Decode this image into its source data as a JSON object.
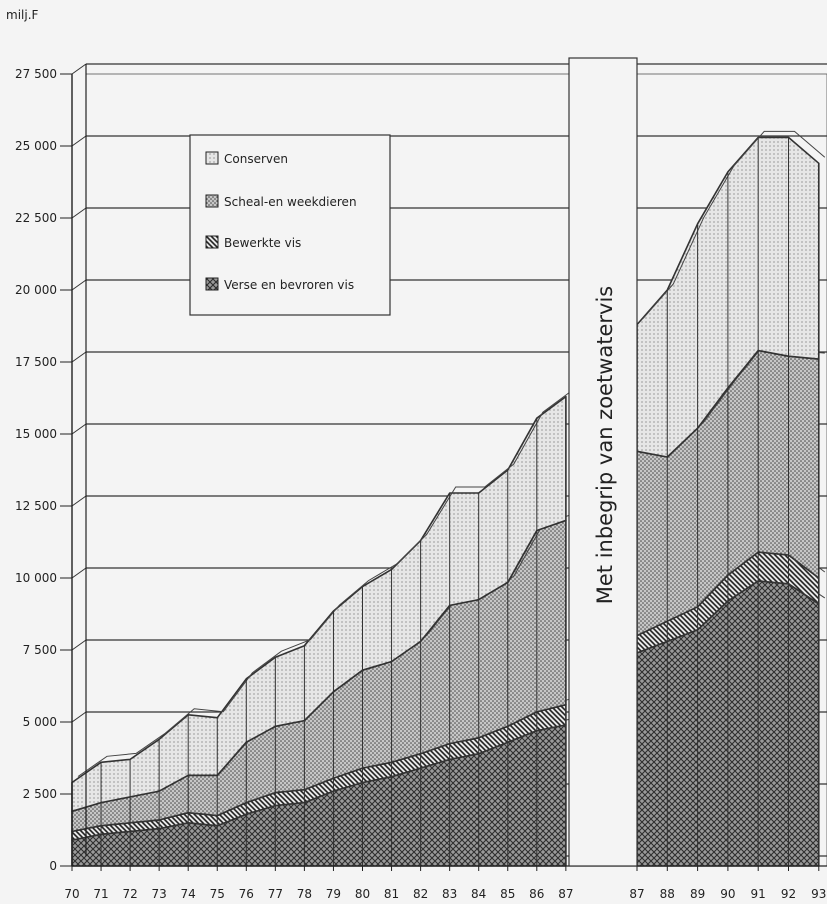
{
  "chart_data": {
    "type": "area",
    "unit_label": "milj.F",
    "note": "Met inbegrip van zoetwatervis",
    "ylim": [
      0,
      27500
    ],
    "y_ticks": [
      {
        "value": 0,
        "label": "0"
      },
      {
        "value": 2500,
        "label": "2 500"
      },
      {
        "value": 5000,
        "label": "5 000"
      },
      {
        "value": 7500,
        "label": "7 500"
      },
      {
        "value": 10000,
        "label": "10 000"
      },
      {
        "value": 12500,
        "label": "12 500"
      },
      {
        "value": 15000,
        "label": "15 000"
      },
      {
        "value": 17500,
        "label": "17 500"
      },
      {
        "value": 20000,
        "label": "20 000"
      },
      {
        "value": 22500,
        "label": "22 500"
      },
      {
        "value": 25000,
        "label": "25 000"
      },
      {
        "value": 27500,
        "label": "27 500"
      }
    ],
    "legend_position": "top-left",
    "segments": [
      {
        "x": [
          "70",
          "71",
          "72",
          "73",
          "74",
          "75",
          "76",
          "77",
          "78",
          "79",
          "80",
          "81",
          "82",
          "83",
          "84",
          "85",
          "86",
          "87"
        ],
        "series": [
          {
            "name": "Verse en bevroren vis",
            "values": [
              900,
              1100,
              1200,
              1300,
              1500,
              1400,
              1800,
              2100,
              2200,
              2600,
              2900,
              3100,
              3400,
              3700,
              3900,
              4300,
              4700,
              4900
            ]
          },
          {
            "name": "Bewerkte vis",
            "values": [
              300,
              300,
              300,
              300,
              350,
              350,
              400,
              450,
              450,
              450,
              500,
              500,
              500,
              550,
              550,
              550,
              650,
              700
            ]
          },
          {
            "name": "Scheal-en weekdieren",
            "values": [
              700,
              800,
              900,
              1000,
              1300,
              1400,
              2100,
              2300,
              2400,
              3000,
              3400,
              3500,
              3900,
              4800,
              4800,
              5000,
              6300,
              6400
            ]
          },
          {
            "name": "Conserven",
            "values": [
              1000,
              1400,
              1300,
              1800,
              2100,
              2000,
              2200,
              2400,
              2600,
              2800,
              2900,
              3200,
              3500,
              3900,
              3700,
              3900,
              3900,
              4300
            ]
          }
        ]
      },
      {
        "x": [
          "87",
          "88",
          "89",
          "90",
          "91",
          "92",
          "93"
        ],
        "series": [
          {
            "name": "Verse en bevroren vis",
            "values": [
              7400,
              7800,
              8200,
              9200,
              9900,
              9800,
              9100
            ]
          },
          {
            "name": "Bewerkte vis",
            "values": [
              600,
              700,
              800,
              900,
              1000,
              1000,
              900
            ]
          },
          {
            "name": "Scheal-en weekdieren",
            "values": [
              6400,
              5700,
              6200,
              6500,
              7000,
              6900,
              7600
            ]
          },
          {
            "name": "Conserven",
            "values": [
              4400,
              5800,
              7100,
              7500,
              7400,
              7600,
              6800
            ]
          }
        ]
      }
    ],
    "legend": [
      {
        "label": "Conserven"
      },
      {
        "label": "Scheal-en weekdieren"
      },
      {
        "label": "Bewerkte vis"
      },
      {
        "label": "Verse en bevroren vis"
      }
    ],
    "colors": {
      "verse": "#6e6e6e",
      "bewerkte": "#3c3c3c",
      "scheal": "#a8a8a8",
      "conserven": "#d2d2d2",
      "line": "#333333"
    }
  }
}
